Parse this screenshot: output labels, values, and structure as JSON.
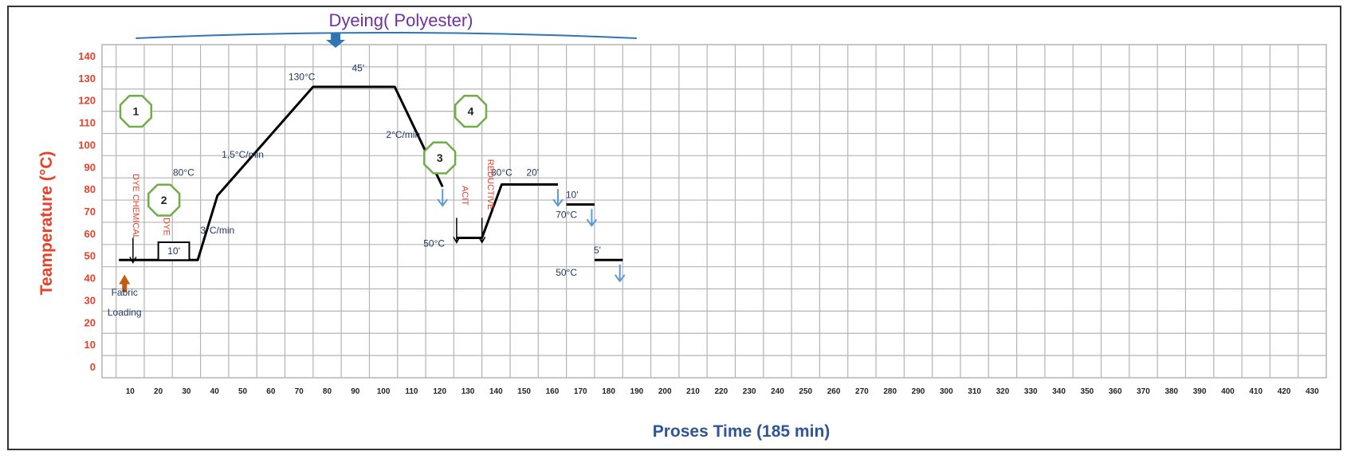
{
  "colors": {
    "profile_line": "#000000",
    "grid": "#b4b4b4",
    "title": "#7030a0",
    "brace": "#2f75b6",
    "ylabel": "#e8412a",
    "xlabel": "#2f5597",
    "annotation_text": "#1f3864",
    "annotation_red": "#e8412a",
    "step_circle": "#70ad47",
    "drain_arrow": "#5b9bd5",
    "loading_arrow": "#c55a11"
  },
  "chart_data": {
    "type": "line",
    "title": "Dyeing( Polyester)",
    "xlabel": "Proses Time (185 min)",
    "ylabel": "Teamperature (°C)",
    "xlim": [
      0,
      435
    ],
    "ylim": [
      -5,
      145
    ],
    "x_ticks": [
      10,
      20,
      30,
      40,
      50,
      60,
      70,
      80,
      90,
      100,
      110,
      120,
      130,
      140,
      150,
      160,
      170,
      180,
      190,
      200,
      210,
      220,
      230,
      240,
      250,
      260,
      270,
      280,
      290,
      300,
      310,
      320,
      330,
      340,
      350,
      360,
      370,
      380,
      390,
      400,
      410,
      420,
      430
    ],
    "y_ticks": [
      0,
      10,
      20,
      30,
      40,
      50,
      60,
      70,
      80,
      90,
      100,
      110,
      120,
      130,
      140
    ],
    "grid": true,
    "legend": "none",
    "process_brace_x": [
      12,
      190
    ],
    "series": [
      {
        "segments": [
          [
            [
              6,
              48
            ],
            [
              34,
              48
            ],
            [
              41,
              77
            ],
            [
              75,
              126
            ],
            [
              104,
              126
            ],
            [
              121,
              81
            ]
          ],
          [
            [
              126,
              58
            ],
            [
              135,
              58
            ],
            [
              142,
              82
            ],
            [
              162,
              82
            ]
          ],
          [
            [
              165,
              73
            ],
            [
              175,
              73
            ]
          ],
          [
            [
              175,
              48
            ],
            [
              185,
              48
            ]
          ]
        ]
      }
    ],
    "dye_box": {
      "x": [
        20,
        31
      ],
      "y": [
        48,
        56
      ],
      "label": "10'"
    },
    "annotations": [
      {
        "text": "130°C",
        "x": 71,
        "y": 129
      },
      {
        "text": "45'",
        "x": 91,
        "y": 133
      },
      {
        "text": "80°C",
        "x": 29,
        "y": 86
      },
      {
        "text": "1,5°C/min",
        "x": 50,
        "y": 94
      },
      {
        "text": "3°C/min",
        "x": 41,
        "y": 60
      },
      {
        "text": "2°C/min",
        "x": 107,
        "y": 103
      },
      {
        "text": "50°C",
        "x": 118,
        "y": 54
      },
      {
        "text": "80°C",
        "x": 142,
        "y": 86
      },
      {
        "text": "20'",
        "x": 153,
        "y": 86
      },
      {
        "text": "10'",
        "x": 167,
        "y": 76
      },
      {
        "text": "70°C",
        "x": 165,
        "y": 67
      },
      {
        "text": "5'",
        "x": 176,
        "y": 51
      },
      {
        "text": "50°C",
        "x": 165,
        "y": 41
      },
      {
        "text": "Fabric",
        "x": 8,
        "y": 32
      },
      {
        "text": "Loading",
        "x": 8,
        "y": 23
      }
    ],
    "vertical_labels": [
      {
        "text": "DYE CHEMICAL",
        "x": 11,
        "y": 72
      },
      {
        "text": "DYE",
        "x": 22,
        "y": 63
      },
      {
        "text": "ACIT",
        "x": 128,
        "y": 77
      },
      {
        "text": "REDUCTIVE",
        "x": 137,
        "y": 82
      }
    ],
    "step_markers": [
      {
        "label": "1",
        "x": 12,
        "y": 115
      },
      {
        "label": "2",
        "x": 22,
        "y": 75
      },
      {
        "label": "3",
        "x": 120,
        "y": 94
      },
      {
        "label": "4",
        "x": 131,
        "y": 115
      }
    ],
    "drain_arrows": [
      {
        "x": 121,
        "y": 80
      },
      {
        "x": 162,
        "y": 80
      },
      {
        "x": 174,
        "y": 71
      },
      {
        "x": 184,
        "y": 46
      }
    ],
    "add_arrows": [
      {
        "x": 11,
        "y": 58
      },
      {
        "x": 126,
        "y": 67
      },
      {
        "x": 135,
        "y": 67
      }
    ],
    "loading_arrow": {
      "x": 8,
      "y": 40
    }
  }
}
